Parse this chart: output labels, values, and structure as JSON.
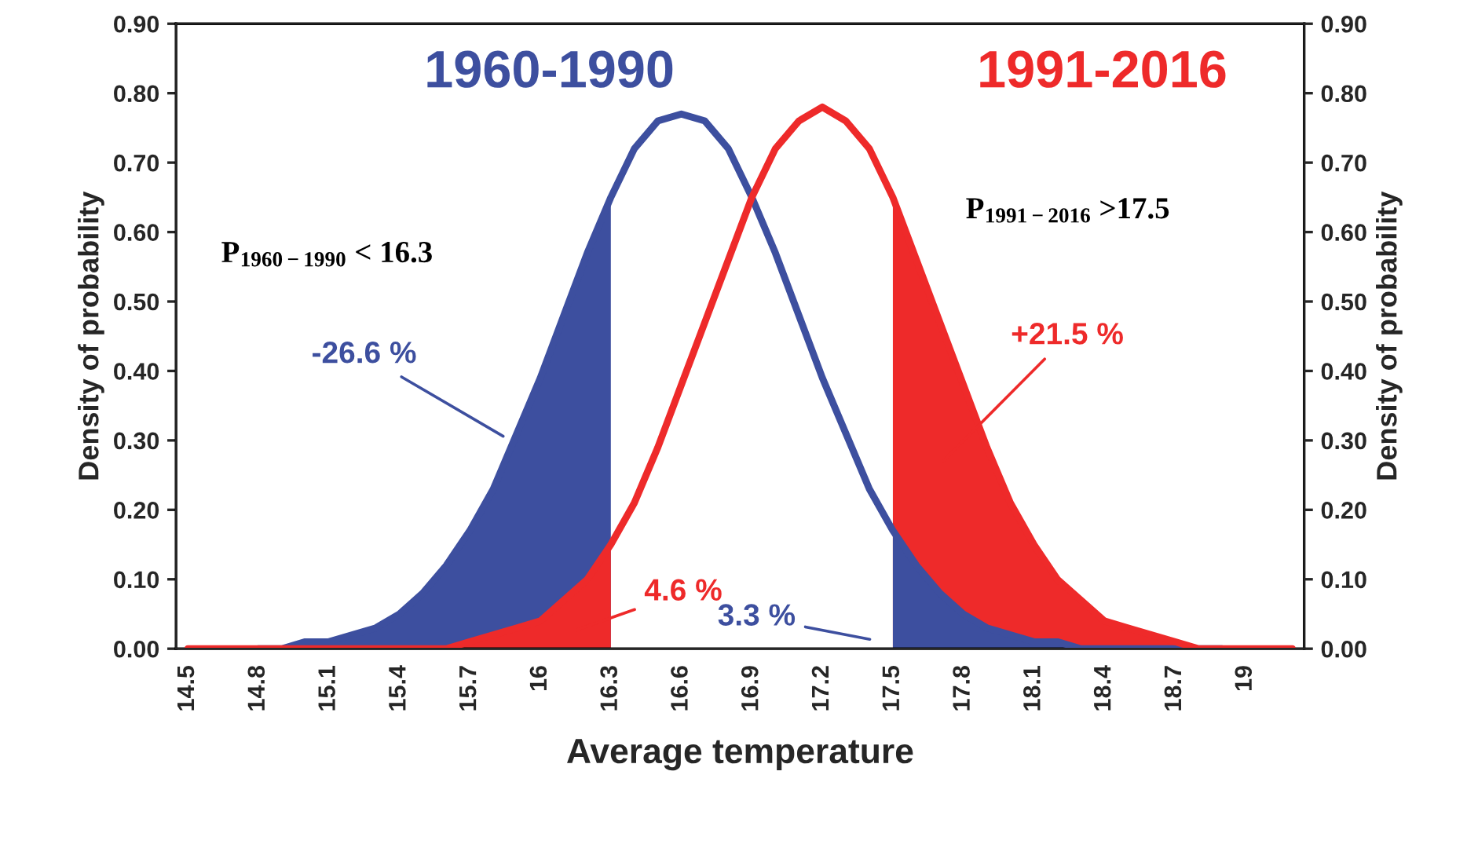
{
  "chart_data": {
    "type": "line",
    "xlabel": "Average temperature",
    "ylabel": "Density of probability",
    "y2label": "Density of probability",
    "xlim": [
      14.45,
      19.25
    ],
    "xticks": [
      14.5,
      14.8,
      15.1,
      15.4,
      15.7,
      16,
      16.3,
      16.6,
      16.9,
      17.2,
      17.5,
      17.8,
      18.1,
      18.4,
      18.7,
      19
    ],
    "ylim": [
      0,
      0.9
    ],
    "yticks": [
      {
        "value": 0,
        "label": "0.00"
      },
      {
        "value": 0.1,
        "label": "0.10"
      },
      {
        "value": 0.2,
        "label": "0.20"
      },
      {
        "value": 0.3,
        "label": "0.30"
      },
      {
        "value": 0.4,
        "label": "0.40"
      },
      {
        "value": 0.5,
        "label": "0.50"
      },
      {
        "value": 0.6,
        "label": "0.60"
      },
      {
        "value": 0.7,
        "label": "0.70"
      },
      {
        "value": 0.8,
        "label": "0.80"
      },
      {
        "value": 0.9,
        "label": "0.90"
      }
    ],
    "y2lim": [
      0,
      0.9
    ],
    "y2ticks": [
      {
        "value": 0,
        "label": "0.00"
      },
      {
        "value": 0.1,
        "label": "0.10"
      },
      {
        "value": 0.2,
        "label": "0.20"
      },
      {
        "value": 0.3,
        "label": "0.30"
      },
      {
        "value": 0.4,
        "label": "0.40"
      },
      {
        "value": 0.5,
        "label": "0.50"
      },
      {
        "value": 0.6,
        "label": "0.60"
      },
      {
        "value": 0.7,
        "label": "0.70"
      },
      {
        "value": 0.8,
        "label": "0.80"
      },
      {
        "value": 0.9,
        "label": "0.90"
      }
    ],
    "series": [
      {
        "type": "area",
        "color": "#3d4f9f",
        "x": [
          14.5,
          14.6,
          14.7,
          14.8,
          14.9,
          15.0,
          15.1,
          15.2,
          15.3,
          15.4,
          15.5,
          15.6,
          15.7,
          15.8,
          15.9,
          16.0,
          16.1,
          16.2,
          16.3
        ],
        "values": [
          0.0,
          0.0,
          0.0,
          0.0,
          0.0,
          0.01,
          0.01,
          0.02,
          0.03,
          0.05,
          0.08,
          0.12,
          0.17,
          0.23,
          0.31,
          0.39,
          0.48,
          0.57,
          0.65
        ]
      },
      {
        "type": "area",
        "color": "#ee2a2a",
        "x": [
          14.5,
          14.6,
          14.7,
          14.8,
          14.9,
          15.0,
          15.1,
          15.2,
          15.3,
          15.4,
          15.5,
          15.6,
          15.7,
          15.8,
          15.9,
          16.0,
          16.1,
          16.2,
          16.3
        ],
        "values": [
          0.0,
          0.0,
          0.0,
          0.0,
          0.0,
          0.0,
          0.0,
          0.0,
          0.0,
          0.0,
          0.0,
          0.0,
          0.01,
          0.02,
          0.03,
          0.04,
          0.07,
          0.1,
          0.15
        ]
      },
      {
        "type": "area",
        "color": "#ee2a2a",
        "x": [
          17.5,
          17.6,
          17.7,
          17.8,
          17.9,
          18.0,
          18.1,
          18.2,
          18.3,
          18.4,
          18.5,
          18.6,
          18.7,
          18.8,
          18.9,
          19.0,
          19.1,
          19.2
        ],
        "values": [
          0.65,
          0.56,
          0.47,
          0.38,
          0.29,
          0.21,
          0.15,
          0.1,
          0.07,
          0.04,
          0.03,
          0.02,
          0.01,
          0.0,
          0.0,
          0.0,
          0.0,
          0.0
        ]
      },
      {
        "type": "area",
        "color": "#3d4f9f",
        "x": [
          17.5,
          17.6,
          17.7,
          17.8,
          17.9,
          18.0,
          18.1,
          18.2,
          18.3,
          18.4,
          18.5,
          18.6,
          18.7,
          18.8,
          18.9,
          19.0,
          19.1,
          19.2
        ],
        "values": [
          0.17,
          0.12,
          0.08,
          0.05,
          0.03,
          0.02,
          0.01,
          0.01,
          0.0,
          0.0,
          0.0,
          0.0,
          0.0,
          0.0,
          0.0,
          0.0,
          0.0,
          0.0
        ]
      },
      {
        "color": "#3d4f9f",
        "x": [
          14.8,
          14.9,
          15.0,
          15.1,
          15.2,
          15.3,
          15.4,
          15.5,
          15.6,
          15.7,
          15.8,
          15.9,
          16.0,
          16.1,
          16.2,
          16.3,
          16.4,
          16.5,
          16.6,
          16.7,
          16.8,
          16.9,
          17.0,
          17.1,
          17.2,
          17.3,
          17.4,
          17.5,
          17.6,
          17.7,
          17.8,
          17.9,
          18.0,
          18.1,
          18.2,
          18.3,
          18.4,
          18.5,
          18.6,
          18.7,
          18.8,
          18.9
        ],
        "values": [
          0.0,
          0.0,
          0.01,
          0.01,
          0.02,
          0.03,
          0.05,
          0.08,
          0.12,
          0.17,
          0.23,
          0.31,
          0.39,
          0.48,
          0.57,
          0.65,
          0.72,
          0.76,
          0.77,
          0.76,
          0.72,
          0.65,
          0.57,
          0.48,
          0.39,
          0.31,
          0.23,
          0.17,
          0.12,
          0.08,
          0.05,
          0.03,
          0.02,
          0.01,
          0.01,
          0.0,
          0.0,
          0.0,
          0.0,
          0.0,
          0.0,
          0.0
        ]
      },
      {
        "color": "#ee2a2a",
        "x": [
          14.5,
          14.6,
          14.7,
          14.8,
          14.9,
          15.0,
          15.1,
          15.2,
          15.3,
          15.4,
          15.5,
          15.6,
          15.7,
          15.8,
          15.9,
          16.0,
          16.1,
          16.2,
          16.3,
          16.4,
          16.5,
          16.6,
          16.7,
          16.8,
          16.9,
          17.0,
          17.1,
          17.2,
          17.3,
          17.4,
          17.5,
          17.6,
          17.7,
          17.8,
          17.9,
          18.0,
          18.1,
          18.2,
          18.3,
          18.4,
          18.5,
          18.6,
          18.7,
          18.8,
          18.9,
          19.0,
          19.1,
          19.2
        ],
        "values": [
          0.0,
          0.0,
          0.0,
          0.0,
          0.0,
          0.0,
          0.0,
          0.0,
          0.0,
          0.0,
          0.0,
          0.0,
          0.01,
          0.02,
          0.03,
          0.04,
          0.07,
          0.1,
          0.15,
          0.21,
          0.29,
          0.38,
          0.47,
          0.56,
          0.65,
          0.72,
          0.76,
          0.78,
          0.76,
          0.72,
          0.65,
          0.56,
          0.47,
          0.38,
          0.29,
          0.21,
          0.15,
          0.1,
          0.07,
          0.04,
          0.03,
          0.02,
          0.01,
          0.0,
          0.0,
          0.0,
          0.0,
          0.0
        ]
      }
    ],
    "annotations": [
      "1960-1990",
      "1991-2016",
      "P$_{1960−1990}$ < 16.3",
      "P$_{1991−2016}$ >17.5",
      "-26.6 %",
      "4.6 %",
      "3.3 %",
      "+21.5 %"
    ]
  }
}
